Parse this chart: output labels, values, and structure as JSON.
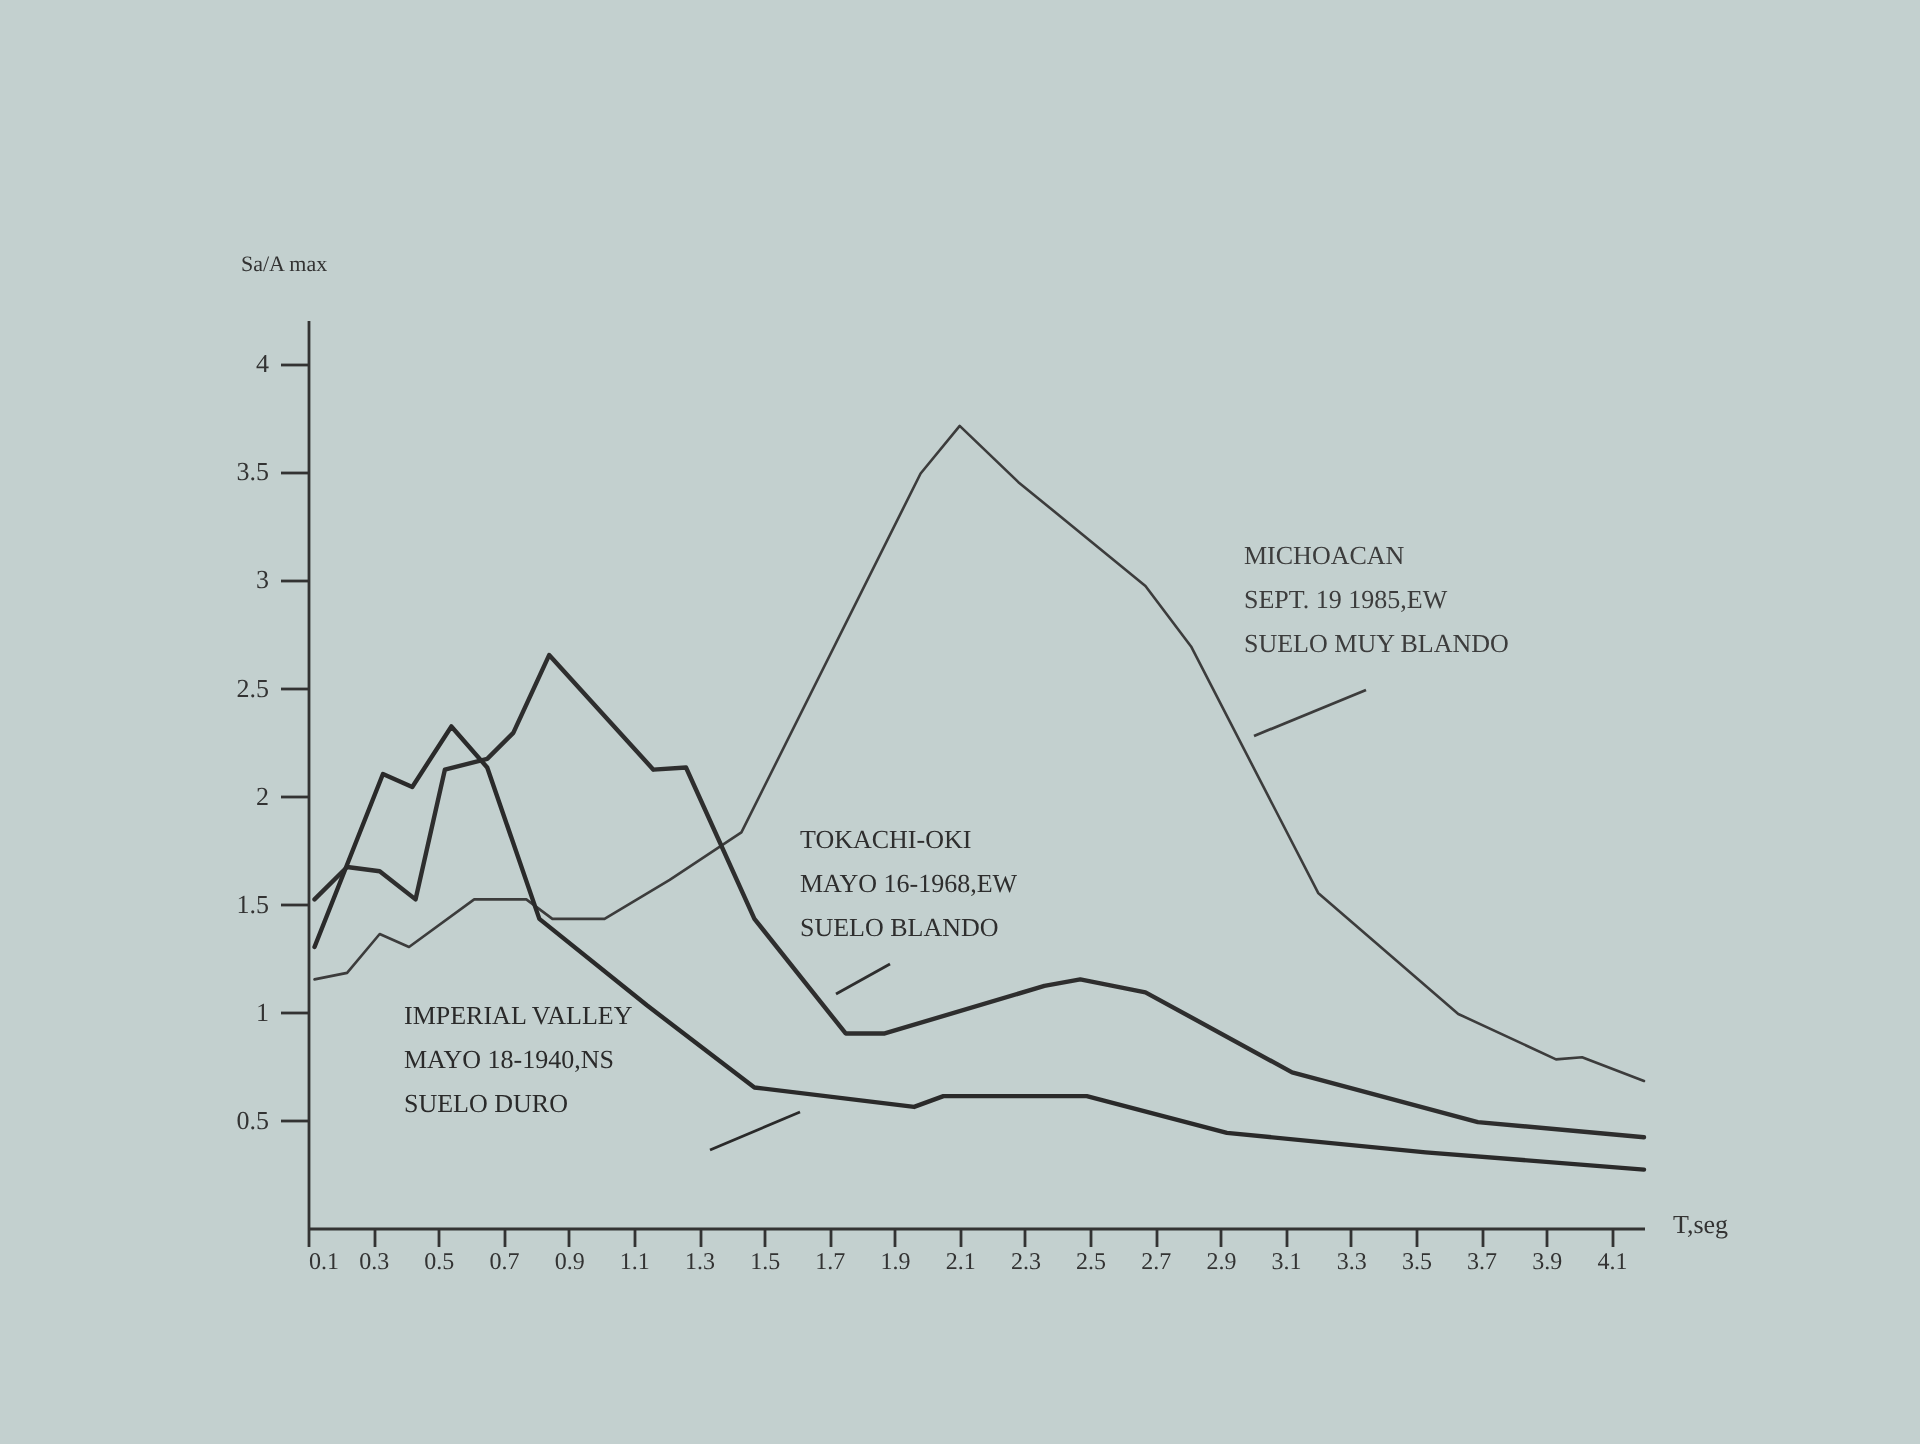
{
  "chart_data": {
    "type": "line",
    "xlabel": "T,seg",
    "ylabel": "Sa/A max",
    "xlim": [
      0.1,
      4.2
    ],
    "xticks": [
      0.1,
      0.3,
      0.5,
      0.7,
      0.9,
      1.1,
      1.3,
      1.5,
      1.7,
      1.9,
      2.1,
      2.3,
      2.5,
      2.7,
      2.9,
      3.1,
      3.3,
      3.5,
      3.7,
      3.9,
      4.1
    ],
    "ylim": [
      0,
      4.2
    ],
    "yticks": [
      0.5,
      1,
      1.5,
      2,
      2.5,
      3,
      3.5,
      4
    ],
    "series": [
      {
        "name": "MICHOACAN\nSEPT. 19 1985,EW\nSUELO MUY BLANDO",
        "color": "#3c3c3c",
        "x": [
          0.12,
          0.22,
          0.32,
          0.41,
          0.61,
          0.77,
          0.85,
          1.01,
          1.21,
          1.43,
          1.98,
          2.1,
          2.28,
          2.67,
          2.81,
          3.2,
          3.63,
          3.93,
          4.01,
          4.2
        ],
        "values": [
          1.15,
          1.18,
          1.36,
          1.3,
          1.52,
          1.52,
          1.43,
          1.43,
          1.61,
          1.83,
          3.49,
          3.71,
          3.45,
          2.97,
          2.69,
          1.55,
          0.99,
          0.78,
          0.79,
          0.68
        ]
      },
      {
        "name": "TOKACHI-OKI\nMAYO 16-1968,EW\nSUELO BLANDO",
        "color": "#2e2e2e",
        "x": [
          0.12,
          0.22,
          0.32,
          0.43,
          0.52,
          0.65,
          0.73,
          0.84,
          1.16,
          1.26,
          1.47,
          1.75,
          1.87,
          2.36,
          2.47,
          2.67,
          3.12,
          3.69,
          4.2
        ],
        "values": [
          1.52,
          1.67,
          1.65,
          1.52,
          2.12,
          2.17,
          2.29,
          2.65,
          2.12,
          2.13,
          1.43,
          0.9,
          0.9,
          1.12,
          1.15,
          1.09,
          0.72,
          0.49,
          0.42
        ]
      },
      {
        "name": "IMPERIAL VALLEY\nMAYO 18-1940,NS\nSUELO DURO",
        "color": "#2a2a2a",
        "x": [
          0.12,
          0.33,
          0.42,
          0.54,
          0.65,
          0.81,
          1.14,
          1.47,
          1.96,
          2.05,
          2.49,
          2.92,
          3.53,
          4.2
        ],
        "values": [
          1.3,
          2.1,
          2.04,
          2.32,
          2.13,
          1.43,
          1.03,
          0.65,
          0.56,
          0.61,
          0.61,
          0.44,
          0.35,
          0.27
        ]
      }
    ]
  }
}
